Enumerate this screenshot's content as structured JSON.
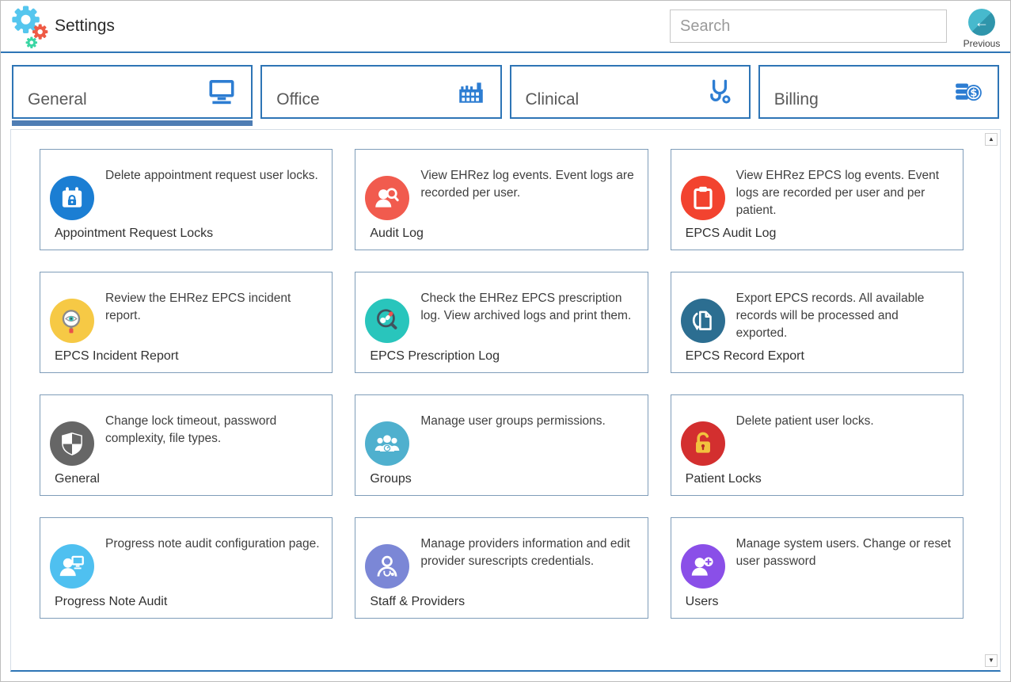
{
  "header": {
    "title": "Settings",
    "search_placeholder": "Search",
    "previous_label": "Previous",
    "previous_arrow": "←"
  },
  "tabs": [
    {
      "label": "General",
      "icon": "monitor-icon",
      "selected": true
    },
    {
      "label": "Office",
      "icon": "factory-icon",
      "selected": false
    },
    {
      "label": "Clinical",
      "icon": "stethoscope-icon",
      "selected": false
    },
    {
      "label": "Billing",
      "icon": "billing-coins-icon",
      "selected": false
    }
  ],
  "cards": [
    {
      "title": "Appointment Request Locks",
      "description": "Delete appointment request user locks.",
      "icon": "calendar-lock-icon",
      "icon_color": "#1b7ed3"
    },
    {
      "title": "Audit Log",
      "description": "View EHRez log events. Event logs are recorded per user.",
      "icon": "user-magnifier-icon",
      "icon_color": "#f15b4e"
    },
    {
      "title": "EPCS Audit Log",
      "description": "View EHRez EPCS log events. Event logs are recorded per user and per patient.",
      "icon": "clipboard-icon",
      "icon_color": "#f2432f"
    },
    {
      "title": "EPCS Incident Report",
      "description": "Review the EHRez EPCS incident report.",
      "icon": "magnifier-eye-icon",
      "icon_color": "#f6c945"
    },
    {
      "title": "EPCS Prescription Log",
      "description": "Check the EHRez EPCS prescription log. View archived logs and print them.",
      "icon": "magnifier-pills-icon",
      "icon_color": "#29c5bc"
    },
    {
      "title": "EPCS Record Export",
      "description": "Export EPCS records. All available records will be processed and exported.",
      "icon": "document-export-icon",
      "icon_color": "#2c6e91"
    },
    {
      "title": "General",
      "description": "Change lock timeout, password complexity, file types.",
      "icon": "shield-icon",
      "icon_color": "#666666"
    },
    {
      "title": "Groups",
      "description": "Manage user groups permissions.",
      "icon": "user-group-icon",
      "icon_color": "#4fb0ce"
    },
    {
      "title": "Patient Locks",
      "description": "Delete patient user locks.",
      "icon": "padlock-icon",
      "icon_color": "#d32f2f"
    },
    {
      "title": "Progress Note Audit",
      "description": "Progress note audit configuration page.",
      "icon": "user-monitor-icon",
      "icon_color": "#4fc0f0"
    },
    {
      "title": "Staff & Providers",
      "description": "Manage providers information and edit provider surescripts credentials.",
      "icon": "provider-icon",
      "icon_color": "#7b87d6"
    },
    {
      "title": "Users",
      "description": "Manage system users. Change or reset user password",
      "icon": "user-add-icon",
      "icon_color": "#8a4fe8"
    }
  ],
  "scrollbar": {
    "up_glyph": "▲",
    "down_glyph": "▼"
  },
  "colors": {
    "accent_blue": "#2e75b6",
    "tab_underline": "#4e7db4",
    "tab_icon_blue": "#2d7dd2",
    "card_border": "#7f9db9",
    "previous_button_teal": "#41b1c5"
  }
}
